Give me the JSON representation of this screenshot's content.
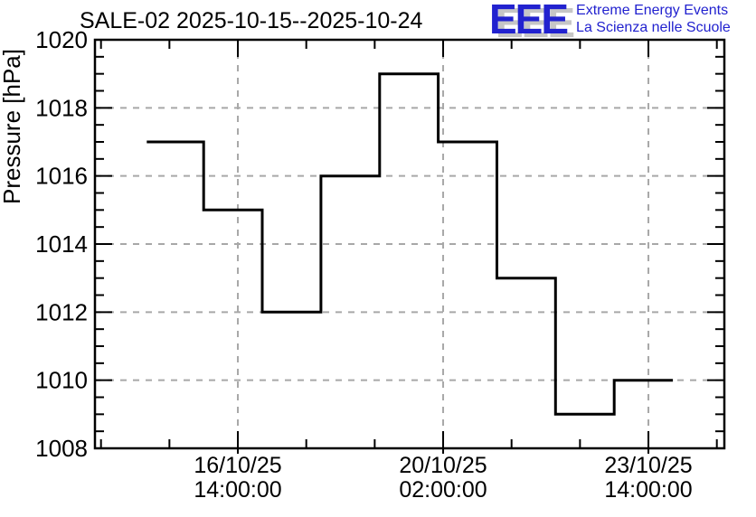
{
  "header": {
    "title": "SALE-02 2025-10-15--2025-10-24"
  },
  "logo": {
    "acronym": "EEE",
    "line1": "Extreme Energy Events",
    "line2": "La Scienza nelle Scuole",
    "text_color": "#2222cf",
    "shadow_color": "#c6c6c6"
  },
  "chart_data": {
    "type": "line",
    "subtype": "histogram-step",
    "title": "SALE-02 2025-10-15--2025-10-24",
    "xlabel": "",
    "ylabel": "Pressure [hPa]",
    "ylim": [
      1008,
      1020
    ],
    "y_major_ticks": [
      1008,
      1010,
      1012,
      1014,
      1016,
      1018,
      1020
    ],
    "y_minor_step": 0.5,
    "grid": true,
    "legend": "none",
    "x_unit_days_since": "2025-10-15 00:00:00",
    "xlim": [
      -0.853,
      9.878
    ],
    "x_major_ticks": [
      {
        "pos": 1.58333,
        "label_line1": "16/10/25",
        "label_line2": "14:00:00"
      },
      {
        "pos": 5.08333,
        "label_line1": "20/10/25",
        "label_line2": "02:00:00"
      },
      {
        "pos": 8.58333,
        "label_line1": "23/10/25",
        "label_line2": "14:00:00"
      }
    ],
    "x_minor_step": 1.16667,
    "bins": {
      "edges_days": [
        0.03,
        1,
        2,
        3,
        4,
        5,
        6,
        7,
        8,
        9
      ],
      "dates": [
        "15/10/25",
        "16/10/25",
        "17/10/25",
        "18/10/25",
        "19/10/25",
        "20/10/25",
        "21/10/25",
        "22/10/25",
        "23/10/25"
      ],
      "values_hpa": [
        1017,
        1015,
        1012,
        1016,
        1019,
        1017,
        1013,
        1009,
        1010
      ]
    },
    "line_color": "#000000",
    "frame_color": "#000000",
    "grid_color": "#a8a8a8",
    "background_color": "#ffffff"
  }
}
